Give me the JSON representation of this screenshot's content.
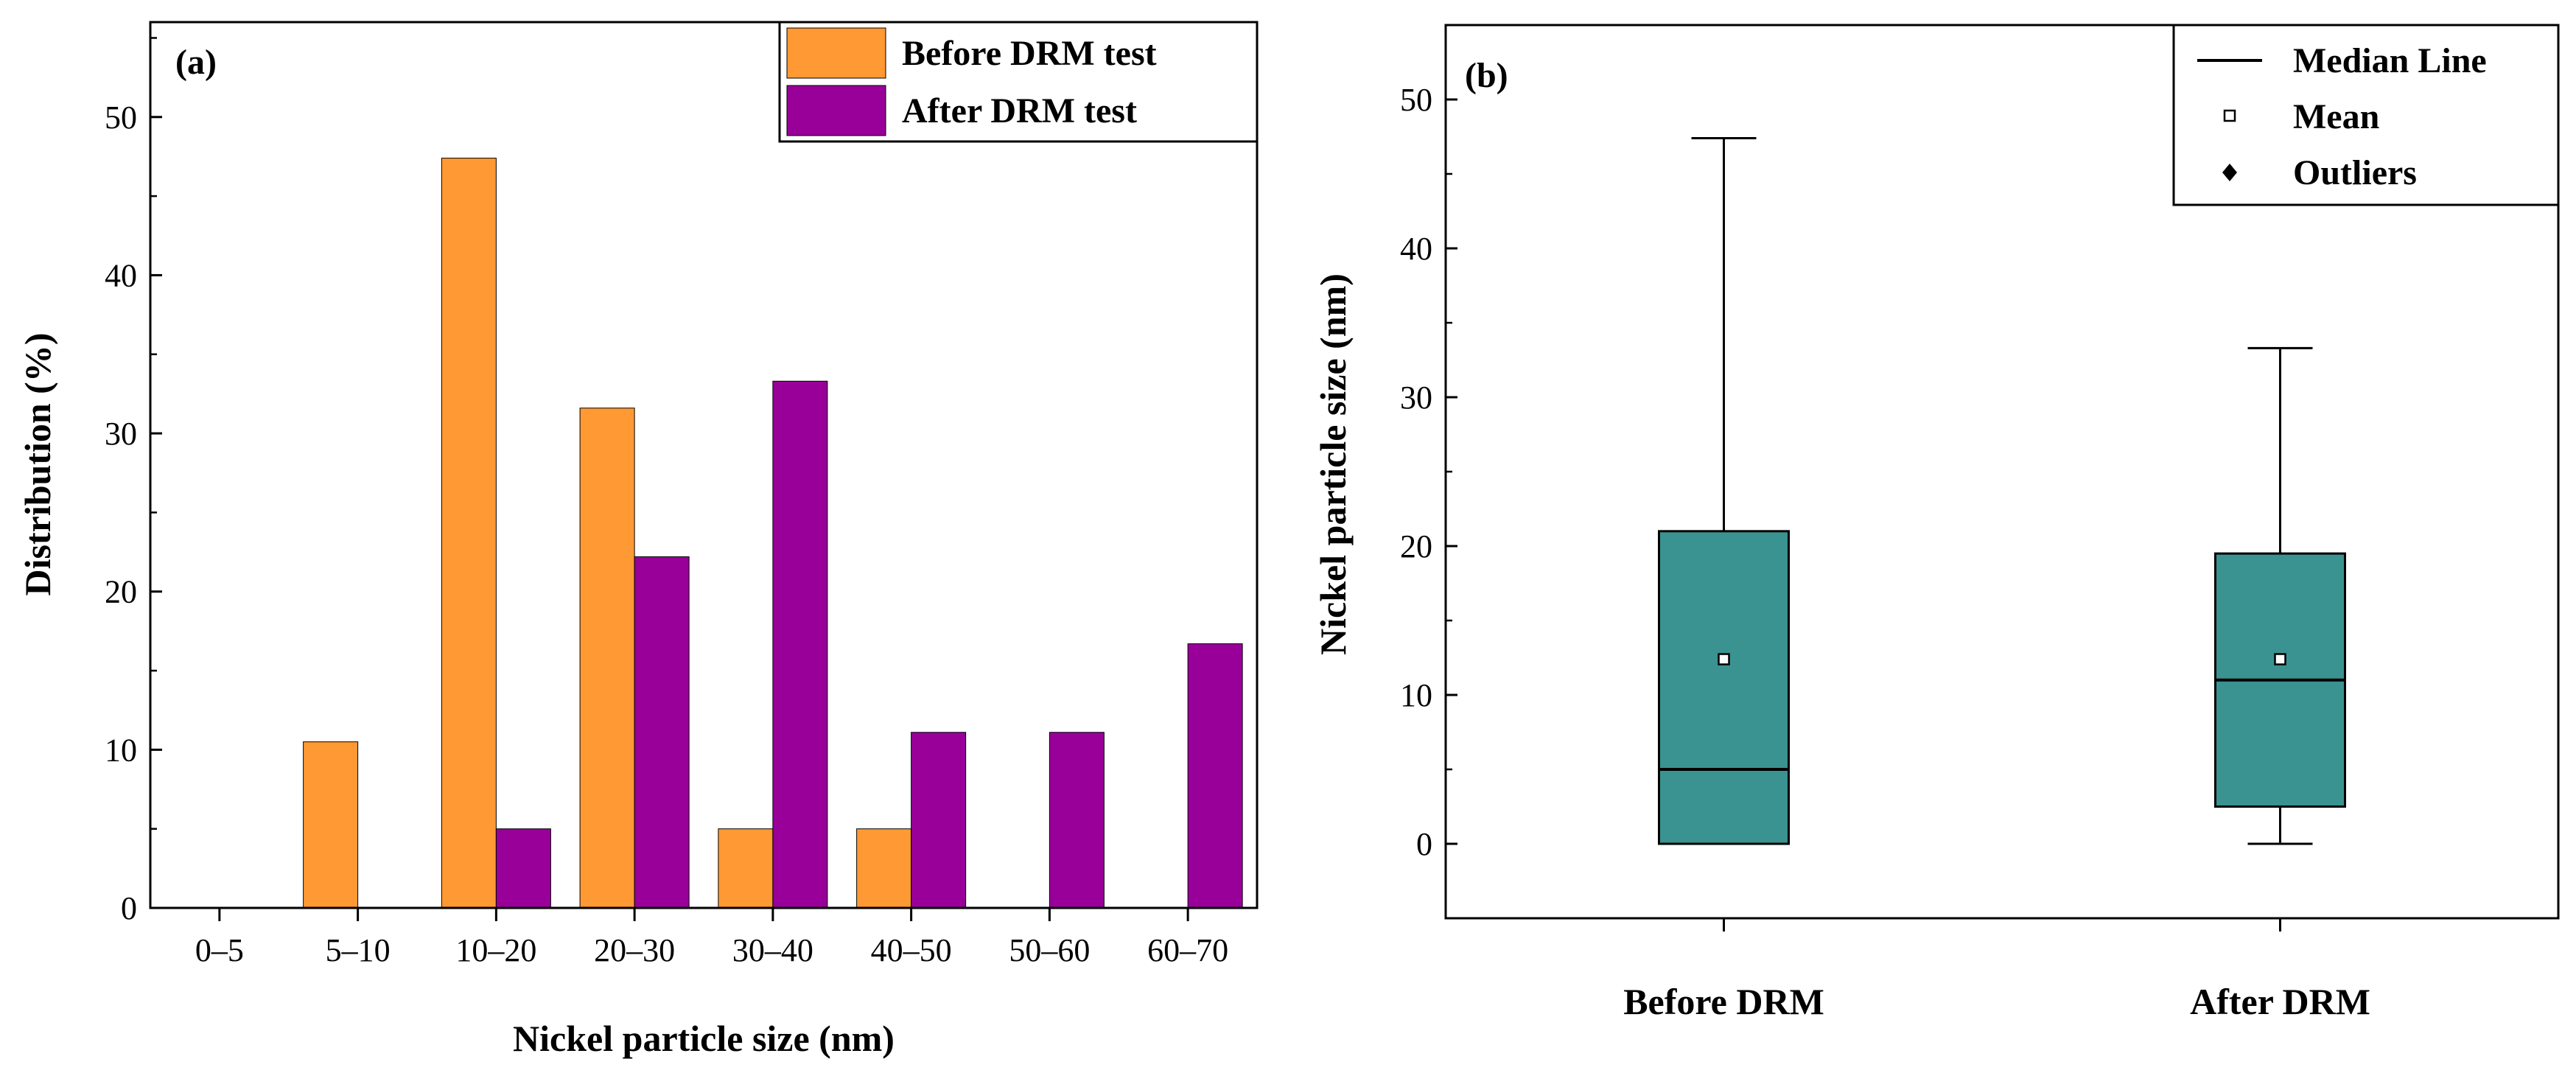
{
  "chart_data": [
    {
      "type": "bar",
      "panel_label": "(a)",
      "categories": [
        "0–5",
        "5–10",
        "10–20",
        "20–30",
        "30–40",
        "40–50",
        "50–60",
        "60–70"
      ],
      "series": [
        {
          "name": "Before DRM test",
          "color": "#FF9933",
          "values": [
            0,
            10.5,
            47.4,
            31.6,
            5.0,
            5.0,
            0,
            0
          ]
        },
        {
          "name": "After DRM test",
          "color": "#990099",
          "values": [
            0,
            0,
            5.0,
            22.2,
            33.3,
            11.1,
            11.1,
            16.7
          ]
        }
      ],
      "xlabel": "Nickel particle size (nm)",
      "ylabel": "Distribution (%)",
      "ylim": [
        0,
        56
      ],
      "yticks": [
        0,
        10,
        20,
        30,
        40,
        50
      ],
      "legend_position": "top-right",
      "grid": false
    },
    {
      "type": "box",
      "panel_label": "(b)",
      "categories": [
        "Before DRM",
        "After DRM"
      ],
      "boxes": [
        {
          "min": 0,
          "q1": 0,
          "median": 5,
          "mean": 12.4,
          "q3": 21,
          "max": 47.4
        },
        {
          "min": 0,
          "q1": 2.5,
          "median": 11,
          "mean": 12.4,
          "q3": 19.5,
          "max": 33.3
        }
      ],
      "box_color": "#3A9391",
      "xlabel": "",
      "ylabel": "Nickel particle size (nm)",
      "ylim": [
        -5,
        55
      ],
      "yticks": [
        0,
        10,
        20,
        30,
        40,
        50
      ],
      "legend": [
        "Median Line",
        "Mean",
        "Outliers"
      ],
      "legend_position": "top-right",
      "grid": false
    }
  ]
}
